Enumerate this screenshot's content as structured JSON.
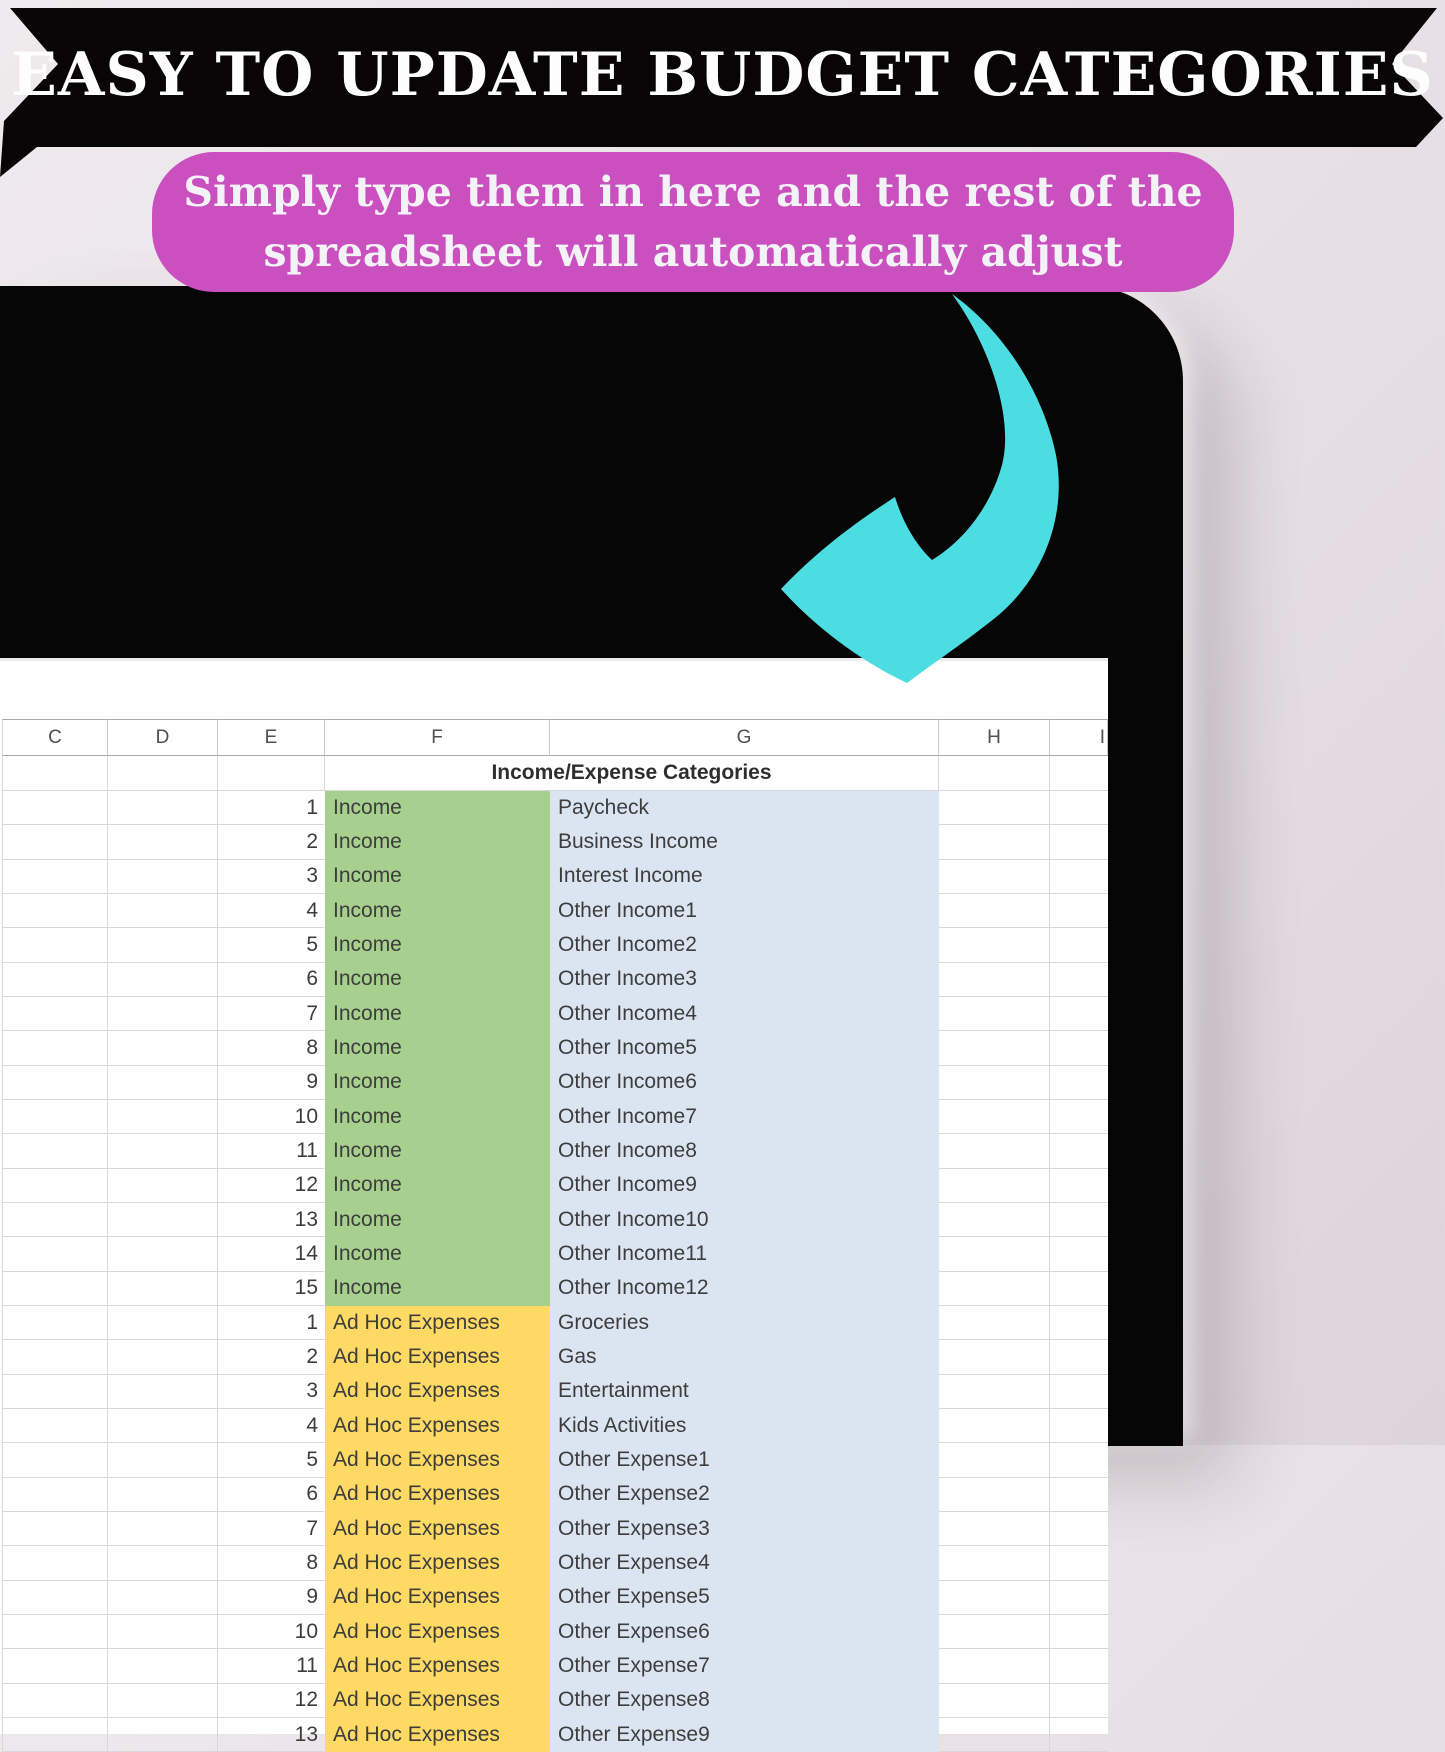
{
  "banner": {
    "title": "EASY TO UPDATE BUDGET CATEGORIES"
  },
  "callout": {
    "line1": "Simply type them in here and the rest of the",
    "line2": "spreadsheet will automatically adjust"
  },
  "sheet": {
    "column_letters": [
      "C",
      "D",
      "E",
      "F",
      "G",
      "H",
      "I"
    ],
    "title": "Income/Expense Categories",
    "income_label": "Income",
    "adhoc_label": "Ad Hoc Expenses",
    "income_rows": [
      {
        "num": "1",
        "name": "Paycheck"
      },
      {
        "num": "2",
        "name": "Business Income"
      },
      {
        "num": "3",
        "name": "Interest Income"
      },
      {
        "num": "4",
        "name": "Other Income1"
      },
      {
        "num": "5",
        "name": "Other Income2"
      },
      {
        "num": "6",
        "name": "Other Income3"
      },
      {
        "num": "7",
        "name": "Other Income4"
      },
      {
        "num": "8",
        "name": "Other Income5"
      },
      {
        "num": "9",
        "name": "Other Income6"
      },
      {
        "num": "10",
        "name": "Other Income7"
      },
      {
        "num": "11",
        "name": "Other Income8"
      },
      {
        "num": "12",
        "name": "Other Income9"
      },
      {
        "num": "13",
        "name": "Other Income10"
      },
      {
        "num": "14",
        "name": "Other Income11"
      },
      {
        "num": "15",
        "name": "Other Income12"
      }
    ],
    "adhoc_rows": [
      {
        "num": "1",
        "name": "Groceries"
      },
      {
        "num": "2",
        "name": "Gas"
      },
      {
        "num": "3",
        "name": "Entertainment"
      },
      {
        "num": "4",
        "name": "Kids Activities"
      },
      {
        "num": "5",
        "name": "Other Expense1"
      },
      {
        "num": "6",
        "name": "Other Expense2"
      },
      {
        "num": "7",
        "name": "Other Expense3"
      },
      {
        "num": "8",
        "name": "Other Expense4"
      },
      {
        "num": "9",
        "name": "Other Expense5"
      },
      {
        "num": "10",
        "name": "Other Expense6"
      },
      {
        "num": "11",
        "name": "Other Expense7"
      },
      {
        "num": "12",
        "name": "Other Expense8"
      },
      {
        "num": "13",
        "name": "Other Expense9"
      }
    ]
  },
  "colors": {
    "banner_bg": "#070505",
    "callout_pink": "#ca50c0",
    "arrow_cyan": "#4bdde2",
    "income_green": "#a7cf8d",
    "expense_yellow": "#fed964",
    "subcategory_blue": "#dbe5f1"
  }
}
